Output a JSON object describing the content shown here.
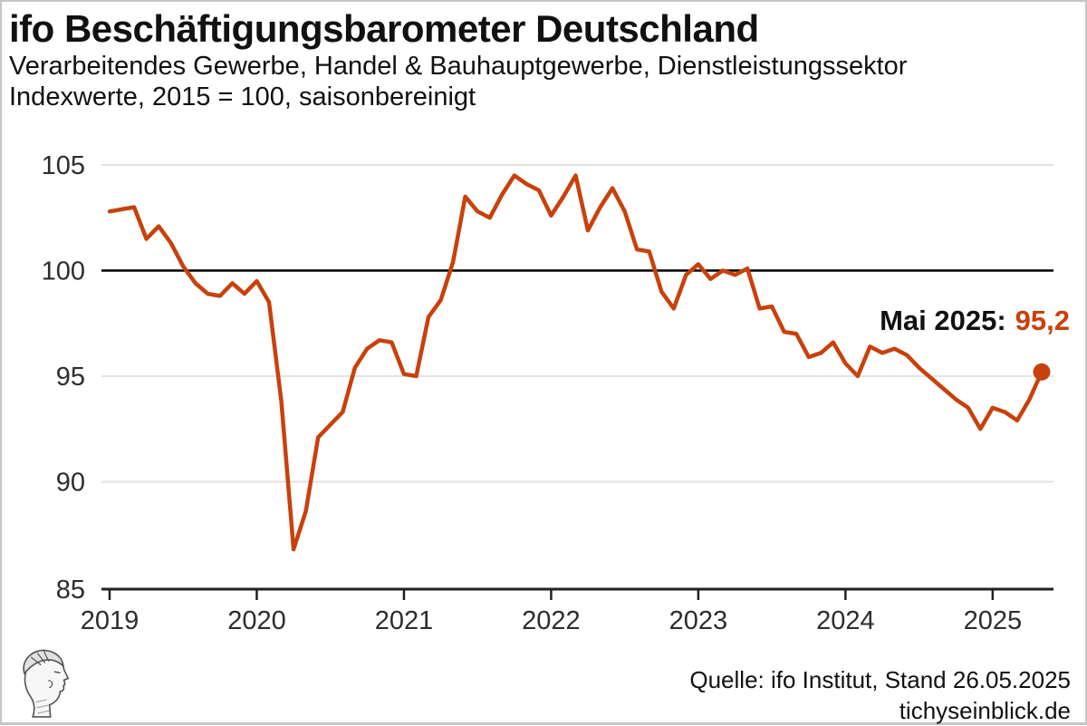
{
  "header": {
    "title": "ifo Beschäftigungsbarometer Deutschland",
    "subtitle1": "Verarbeitendes Gewerbe, Handel & Bauhauptgewerbe, Dienstleistungssektor",
    "subtitle2": "Indexwerte, 2015 = 100, saisonbereinigt"
  },
  "annotation": {
    "label": "Mai 2025:",
    "value": "95,2"
  },
  "footer": {
    "source": "Quelle: ifo Institut, Stand 26.05.2025",
    "site": "tichyseinblick.de"
  },
  "logo": {
    "name": "tichys-einblick-head-logo"
  },
  "colors": {
    "line": "#c8410b",
    "accent_value": "#c8410b",
    "baseline": "#000000",
    "grid": "#e3e3e3",
    "axis": "#222222",
    "tick_text": "#2d2d2d",
    "text": "#111111",
    "border": "#c6c6c6"
  },
  "chart_data": {
    "type": "line",
    "title": "ifo Beschäftigungsbarometer Deutschland",
    "xlabel": "",
    "ylabel": "Indexwerte, 2015 = 100, saisonbereinigt",
    "x_start_month": "2019-01",
    "x_end_month": "2025-05",
    "x_tick_labels": [
      "2019",
      "2020",
      "2021",
      "2022",
      "2023",
      "2024",
      "2025"
    ],
    "y_ticks": [
      85,
      90,
      95,
      100,
      105
    ],
    "y_tick_labels": [
      "85",
      "90",
      "95",
      "100",
      "105"
    ],
    "ylim": [
      85,
      105
    ],
    "baseline_value": 100,
    "grid": true,
    "legend_position": "none",
    "highlight_point": {
      "label": "Mai 2025",
      "value": 95.2,
      "display": "95,2"
    },
    "series": [
      {
        "name": "ifo Beschäftigungsbarometer",
        "monthly_values": [
          102.8,
          102.9,
          103.0,
          101.5,
          102.1,
          101.3,
          100.2,
          99.4,
          98.9,
          98.8,
          99.4,
          98.9,
          99.5,
          98.5,
          93.8,
          86.8,
          88.6,
          92.1,
          92.7,
          93.3,
          95.4,
          96.3,
          96.7,
          96.6,
          95.1,
          95.0,
          97.8,
          98.6,
          100.4,
          103.5,
          102.8,
          102.5,
          103.6,
          104.5,
          104.1,
          103.8,
          102.6,
          103.5,
          104.5,
          101.9,
          103.0,
          103.9,
          102.8,
          101.0,
          100.9,
          99.0,
          98.2,
          99.8,
          100.3,
          99.6,
          100.0,
          99.8,
          100.1,
          98.2,
          98.3,
          97.1,
          97.0,
          95.9,
          96.1,
          96.6,
          95.6,
          95.0,
          96.4,
          96.1,
          96.3,
          96.0,
          95.4,
          94.9,
          94.4,
          93.9,
          93.5,
          92.5,
          93.5,
          93.3,
          92.9,
          93.9,
          95.2
        ]
      }
    ]
  }
}
